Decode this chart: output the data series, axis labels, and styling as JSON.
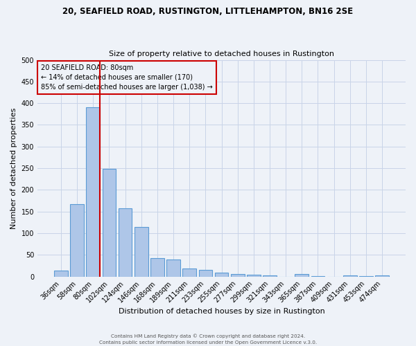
{
  "title": "20, SEAFIELD ROAD, RUSTINGTON, LITTLEHAMPTON, BN16 2SE",
  "subtitle": "Size of property relative to detached houses in Rustington",
  "xlabel": "Distribution of detached houses by size in Rustington",
  "ylabel": "Number of detached properties",
  "bar_labels": [
    "36sqm",
    "58sqm",
    "80sqm",
    "102sqm",
    "124sqm",
    "146sqm",
    "168sqm",
    "189sqm",
    "211sqm",
    "233sqm",
    "255sqm",
    "277sqm",
    "299sqm",
    "321sqm",
    "343sqm",
    "365sqm",
    "387sqm",
    "409sqm",
    "431sqm",
    "453sqm",
    "474sqm"
  ],
  "bar_values": [
    14,
    167,
    390,
    249,
    157,
    115,
    43,
    39,
    19,
    15,
    9,
    6,
    4,
    2,
    0,
    5,
    1,
    0,
    3,
    1,
    2
  ],
  "bar_color": "#aec6e8",
  "bar_edge_color": "#5b9bd5",
  "grid_color": "#c8d4e8",
  "background_color": "#eef2f8",
  "vline_color": "#cc0000",
  "annotation_title": "20 SEAFIELD ROAD: 80sqm",
  "annotation_line1": "← 14% of detached houses are smaller (170)",
  "annotation_line2": "85% of semi-detached houses are larger (1,038) →",
  "annotation_box_color": "#cc0000",
  "ylim": [
    0,
    500
  ],
  "yticks": [
    0,
    50,
    100,
    150,
    200,
    250,
    300,
    350,
    400,
    450,
    500
  ],
  "footer1": "Contains HM Land Registry data © Crown copyright and database right 2024.",
  "footer2": "Contains public sector information licensed under the Open Government Licence v.3.0."
}
